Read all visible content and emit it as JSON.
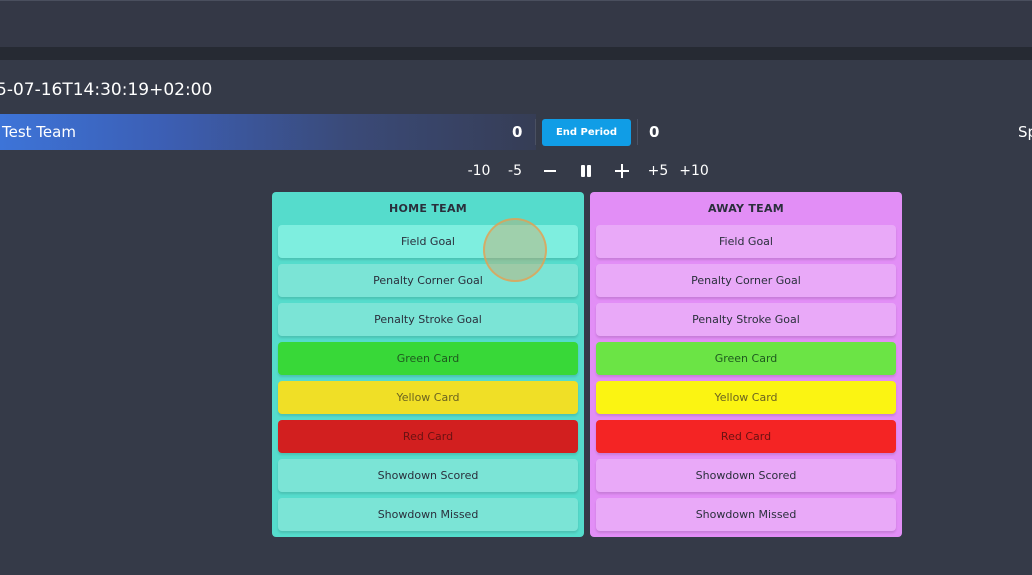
{
  "header": {
    "timestamp": "5-07-16T14:30:19+02:00"
  },
  "scoreboard": {
    "home_team_name": "Test Team",
    "home_score": "0",
    "end_period_label": "End Period",
    "away_score": "0",
    "right_label_cut": "Sp"
  },
  "time_controls": {
    "minus10": "-10",
    "minus5": "-5",
    "plus5": "+5",
    "plus10": "+10"
  },
  "home_panel": {
    "title": "HOME TEAM",
    "events": [
      "Field Goal",
      "Penalty Corner Goal",
      "Penalty Stroke Goal",
      "Green Card",
      "Yellow Card",
      "Red Card",
      "Showdown Scored",
      "Showdown Missed"
    ]
  },
  "away_panel": {
    "title": "AWAY TEAM",
    "events": [
      "Field Goal",
      "Penalty Corner Goal",
      "Penalty Stroke Goal",
      "Green Card",
      "Yellow Card",
      "Red Card",
      "Showdown Scored",
      "Showdown Missed"
    ]
  },
  "colors": {
    "home_panel": "#55dccc",
    "away_panel": "#e28ef6",
    "end_period": "#109de6",
    "background": "#353a48"
  },
  "icons": [
    "pause-icon",
    "minus-icon",
    "plus-icon"
  ]
}
